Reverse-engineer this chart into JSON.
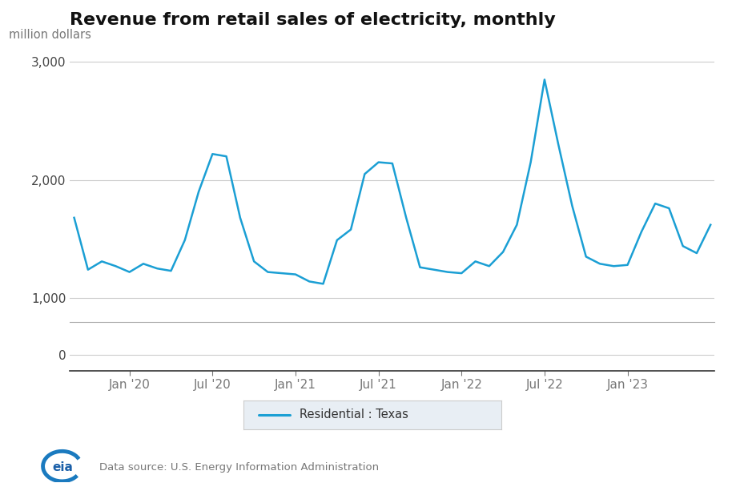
{
  "title": "Revenue from retail sales of electricity, monthly",
  "ylabel": "million dollars",
  "line_color": "#1b9fd4",
  "legend_label": "Residential : Texas",
  "legend_bg": "#e8eef4",
  "source_text": "Data source: U.S. Energy Information Administration",
  "ylim_main": [
    800,
    3150
  ],
  "yticks_main": [
    1000,
    2000,
    3000
  ],
  "x_tick_labels": [
    "Jan '20",
    "Jul '20",
    "Jan '21",
    "Jul '21",
    "Jan '22",
    "Jul '22",
    "Jan '23"
  ],
  "values": [
    1680,
    1240,
    1310,
    1270,
    1220,
    1290,
    1250,
    1230,
    1490,
    1900,
    2220,
    2200,
    1680,
    1310,
    1220,
    1210,
    1200,
    1140,
    1120,
    1490,
    1580,
    2050,
    2150,
    2140,
    1680,
    1260,
    1240,
    1220,
    1210,
    1310,
    1270,
    1390,
    1620,
    2150,
    2850,
    2300,
    1780,
    1350,
    1290,
    1270,
    1280,
    1560,
    1800,
    1760,
    1440,
    1380,
    1620
  ],
  "n_pre": 4,
  "jan20_idx": 4,
  "jul20_idx": 10,
  "jan21_idx": 16,
  "jul21_idx": 22,
  "jan22_idx": 28,
  "jul22_idx": 34,
  "jan23_idx": 40,
  "title_fontsize": 16,
  "tick_fontsize": 11,
  "ylabel_fontsize": 10.5
}
